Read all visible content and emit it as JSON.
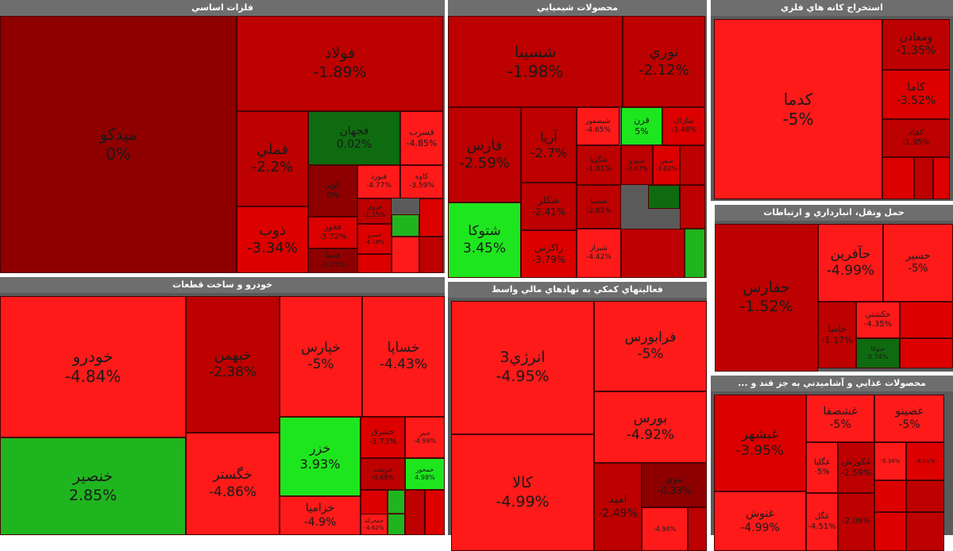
{
  "colors": {
    "deep": "#a30000",
    "dark": "#bd0000",
    "mid": "#dc0000",
    "bright": "#ff1a1a",
    "green_dark": "#0f6b0f",
    "green_mid": "#1fb51f",
    "green_bright": "#1ee61e",
    "flat": "#8e0000"
  },
  "sectors": [
    {
      "title": "فلزات اساسي",
      "tiles": [
        {
          "name": "ميدکو",
          "value": "0%",
          "c": "flat"
        },
        {
          "name": "فولاد",
          "value": "-1.89%",
          "c": "dark"
        },
        {
          "name": "فملي",
          "value": "-2.2%",
          "c": "dark"
        },
        {
          "name": "فجهان",
          "value": "0.02%",
          "c": "green_dark"
        },
        {
          "name": "فسرب",
          "value": "-4.85%",
          "c": "bright"
        },
        {
          "name": "کوير",
          "value": "0%",
          "c": "flat"
        },
        {
          "name": "فنورد",
          "value": "-4.77%",
          "c": "bright"
        },
        {
          "name": "کاوه",
          "value": "-3.59%",
          "c": "bright"
        },
        {
          "name": "ذوب",
          "value": "-3.34%",
          "c": "mid"
        },
        {
          "name": "فخوز",
          "value": "-3.72%",
          "c": "mid"
        },
        {
          "name": "فروي",
          "value": "-1.25%",
          "c": "dark"
        },
        {
          "name": "",
          "value": "",
          "c": "green_mid"
        },
        {
          "name": "",
          "value": "",
          "c": "mid"
        },
        {
          "name": "فسرو",
          "value": "-4.18%",
          "c": "mid"
        },
        {
          "name": "فسپا",
          "value": "-0.15%",
          "c": "flat"
        },
        {
          "name": "",
          "value": "",
          "c": "mid"
        },
        {
          "name": "",
          "value": "",
          "c": "bright"
        },
        {
          "name": "",
          "value": "",
          "c": "dark"
        }
      ]
    },
    {
      "title": "محصولات شيميايي",
      "tiles": [
        {
          "name": "شسينا",
          "value": "-1.98%",
          "c": "dark"
        },
        {
          "name": "نوري",
          "value": "-2.12%",
          "c": "dark"
        },
        {
          "name": "فارس",
          "value": "-2.59%",
          "c": "dark"
        },
        {
          "name": "آريا",
          "value": "-2.7%",
          "c": "dark"
        },
        {
          "name": "شيصفور",
          "value": "-4.65%",
          "c": "bright"
        },
        {
          "name": "قرن",
          "value": "5%",
          "c": "green_bright"
        },
        {
          "name": "شاراک",
          "value": "-3.48%",
          "c": "mid"
        },
        {
          "name": "شگويا",
          "value": "-1.81%",
          "c": "dark"
        },
        {
          "name": "شپترو",
          "value": "-2.67%",
          "c": "dark"
        },
        {
          "name": "شفن",
          "value": "-3.02%",
          "c": "mid"
        },
        {
          "name": "",
          "value": "",
          "c": "dark"
        },
        {
          "name": "شتوکا",
          "value": "3.45%",
          "c": "green_bright"
        },
        {
          "name": "شکلر",
          "value": "-2.41%",
          "c": "dark"
        },
        {
          "name": "شسپا",
          "value": "-2.82%",
          "c": "dark"
        },
        {
          "name": "",
          "value": "",
          "c": "green_dark"
        },
        {
          "name": "",
          "value": "",
          "c": "dark"
        },
        {
          "name": "راکرس",
          "value": "-3.79%",
          "c": "mid"
        },
        {
          "name": "شيراز",
          "value": "-4.42%",
          "c": "bright"
        },
        {
          "name": "",
          "value": "",
          "c": "dark"
        },
        {
          "name": "",
          "value": "",
          "c": "green_mid"
        }
      ]
    },
    {
      "title": "استخراج کانه هاي فلزي",
      "tiles": [
        {
          "name": "کدما",
          "value": "-5%",
          "c": "bright"
        },
        {
          "name": "ومعادن",
          "value": "-1.35%",
          "c": "dark"
        },
        {
          "name": "کاما",
          "value": "-3.52%",
          "c": "mid"
        },
        {
          "name": "کچاد",
          "value": "-1.95%",
          "c": "dark"
        },
        {
          "name": "",
          "value": "",
          "c": "mid"
        },
        {
          "name": "",
          "value": "",
          "c": "dark"
        },
        {
          "name": "",
          "value": "",
          "c": "mid"
        }
      ]
    },
    {
      "title": "حمل ونقل، انبارداري و ارتباطات",
      "tiles": [
        {
          "name": "حفارس",
          "value": "-1.52%",
          "c": "dark"
        },
        {
          "name": "حآفرين",
          "value": "-4.99%",
          "c": "bright"
        },
        {
          "name": "حسير",
          "value": "-5%",
          "c": "bright"
        },
        {
          "name": "حاسا",
          "value": "-1.17%",
          "c": "dark"
        },
        {
          "name": "حکشتي",
          "value": "-4.35%",
          "c": "bright"
        },
        {
          "name": "",
          "value": "",
          "c": "mid"
        },
        {
          "name": "حتوکا",
          "value": "0.74%",
          "c": "green_dark"
        },
        {
          "name": "",
          "value": "",
          "c": "mid"
        }
      ]
    },
    {
      "title": "خودرو و ساخت قطعات",
      "tiles": [
        {
          "name": "خودرو",
          "value": "-4.84%",
          "c": "bright"
        },
        {
          "name": "خبهمن",
          "value": "-2.38%",
          "c": "dark"
        },
        {
          "name": "خپارس",
          "value": "-5%",
          "c": "bright"
        },
        {
          "name": "خساپا",
          "value": "-4.43%",
          "c": "bright"
        },
        {
          "name": "خنصير",
          "value": "2.85%",
          "c": "green_mid"
        },
        {
          "name": "خگستر",
          "value": "-4.86%",
          "c": "bright"
        },
        {
          "name": "خزر",
          "value": "3.93%",
          "c": "green_bright"
        },
        {
          "name": "خزاميا",
          "value": "-4.9%",
          "c": "bright"
        },
        {
          "name": "خشرق",
          "value": "-3.73%",
          "c": "mid"
        },
        {
          "name": "خريخت",
          "value": "-0.68%",
          "c": "dark"
        },
        {
          "name": "خمحور",
          "value": "4.98%",
          "c": "green_bright"
        },
        {
          "name": "خبنر",
          "value": "-4.99%",
          "c": "bright"
        },
        {
          "name": "",
          "value": "",
          "c": "mid"
        },
        {
          "name": "",
          "value": "",
          "c": "green_mid"
        },
        {
          "name": "",
          "value": "",
          "c": "dark"
        },
        {
          "name": "",
          "value": "",
          "c": "mid"
        },
        {
          "name": "",
          "value": "",
          "c": "green_mid"
        },
        {
          "name": "خمحرکه",
          "value": "-4.62%",
          "c": "bright"
        }
      ]
    },
    {
      "title": "فعاليتهاي کمکي به نهادهاي مالي واسط",
      "tiles": [
        {
          "name": "انرژي3",
          "value": "-4.95%",
          "c": "bright"
        },
        {
          "name": "فرابورس",
          "value": "-5%",
          "c": "bright"
        },
        {
          "name": "بورس",
          "value": "-4.92%",
          "c": "bright"
        },
        {
          "name": "کالا",
          "value": "-4.99%",
          "c": "bright"
        },
        {
          "name": "اميد",
          "value": "-2.49%",
          "c": "dark"
        },
        {
          "name": "ثنوي",
          "value": "-0.33%",
          "c": "flat"
        },
        {
          "name": "",
          "value": "-4.94%",
          "c": "bright"
        },
        {
          "name": "",
          "value": "",
          "c": "dark"
        }
      ]
    },
    {
      "title": "... محصولات غذايي و آشاميدني به جز قند و",
      "tiles": [
        {
          "name": "غبشهر",
          "value": "-3.95%",
          "c": "mid"
        },
        {
          "name": "غشصفا",
          "value": "-5%",
          "c": "bright"
        },
        {
          "name": "غصينو",
          "value": "-5%",
          "c": "bright"
        },
        {
          "name": "غگلپا",
          "value": "-5%",
          "c": "bright"
        },
        {
          "name": "غکورش",
          "value": "-2.59%",
          "c": "dark"
        },
        {
          "name": "",
          "value": "-5.34%",
          "c": "bright"
        },
        {
          "name": "",
          "value": "-4.01%",
          "c": "mid"
        },
        {
          "name": "",
          "value": "",
          "c": "mid"
        },
        {
          "name": "",
          "value": "",
          "c": "dark"
        },
        {
          "name": "غنوش",
          "value": "-4.99%",
          "c": "bright"
        },
        {
          "name": "غگل",
          "value": "-4.51%",
          "c": "bright"
        },
        {
          "name": "",
          "value": "-2.08%",
          "c": "dark"
        },
        {
          "name": "",
          "value": "",
          "c": "mid"
        },
        {
          "name": "",
          "value": "",
          "c": "dark"
        }
      ]
    }
  ]
}
